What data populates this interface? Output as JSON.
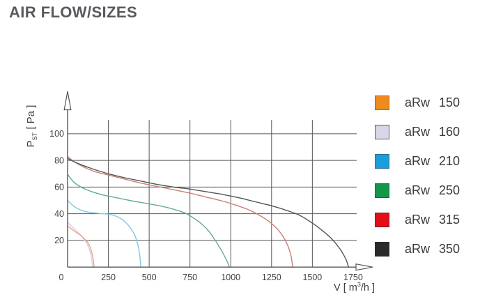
{
  "page": {
    "title": "AIR FLOW/SIZES"
  },
  "colors": {
    "title": "#585A5F",
    "axis": "#55565A",
    "grid": "#55565A",
    "tick_text": "#3E3F41",
    "legend_text": "#3B3C3E",
    "background": "#FFFFFF"
  },
  "chart_data": {
    "type": "line",
    "title": "AIR FLOW/SIZES",
    "xlabel": "V [ m³/h ]",
    "xlabel_parts": {
      "prefix": "V [ m",
      "sup": "3",
      "suffix": "/h ]"
    },
    "ylabel": "Pst [ Pa ]",
    "ylabel_parts": {
      "symbol": "P",
      "sub": "ST",
      "unit": " [ Pa ]"
    },
    "x_ticks": [
      0,
      250,
      500,
      750,
      1000,
      1250,
      1500,
      1750
    ],
    "y_ticks": [
      20,
      40,
      60,
      80,
      100
    ],
    "xlim": [
      0,
      1800
    ],
    "ylim": [
      0,
      110
    ],
    "grid": true,
    "legend_position": "right",
    "series": [
      {
        "name": "aRw 150",
        "swatch_color": "#EF8A1D",
        "swatch_border": "#8C6D40",
        "curve_color": "#E9A186",
        "points": [
          [
            0,
            31
          ],
          [
            30,
            28
          ],
          [
            60,
            25.5
          ],
          [
            88,
            23
          ],
          [
            105,
            21
          ],
          [
            120,
            19
          ],
          [
            135,
            16
          ],
          [
            148,
            11
          ],
          [
            158,
            5
          ],
          [
            163,
            0
          ]
        ]
      },
      {
        "name": "aRw 160",
        "swatch_color": "#D9D6E8",
        "swatch_border": "#58595B",
        "curve_color": "#D4CFDF",
        "points": [
          [
            0,
            33.5
          ],
          [
            30,
            30
          ],
          [
            60,
            26.5
          ],
          [
            85,
            23.5
          ],
          [
            100,
            21
          ],
          [
            112,
            19
          ],
          [
            125,
            16
          ],
          [
            138,
            11.5
          ],
          [
            148,
            6
          ],
          [
            153,
            0
          ]
        ]
      },
      {
        "name": "aRw 210",
        "swatch_color": "#1B9DD9",
        "swatch_border": "#2A6E96",
        "curve_color": "#7EC9E4",
        "points": [
          [
            0,
            50
          ],
          [
            30,
            46.5
          ],
          [
            60,
            44
          ],
          [
            100,
            42
          ],
          [
            150,
            40.8
          ],
          [
            200,
            40.2
          ],
          [
            250,
            39.7
          ],
          [
            290,
            38.5
          ],
          [
            325,
            36.5
          ],
          [
            360,
            33
          ],
          [
            390,
            28.5
          ],
          [
            415,
            23
          ],
          [
            432,
            16
          ],
          [
            443,
            8
          ],
          [
            449,
            0
          ]
        ]
      },
      {
        "name": "aRw 250",
        "swatch_color": "#13954A",
        "swatch_border": "#2A5F3E",
        "curve_color": "#63AB95",
        "points": [
          [
            0,
            69.5
          ],
          [
            40,
            63.5
          ],
          [
            90,
            59.5
          ],
          [
            150,
            56.5
          ],
          [
            220,
            54
          ],
          [
            300,
            52
          ],
          [
            380,
            50
          ],
          [
            450,
            48.5
          ],
          [
            520,
            47
          ],
          [
            600,
            45
          ],
          [
            660,
            43
          ],
          [
            720,
            40.5
          ],
          [
            770,
            37
          ],
          [
            820,
            32.5
          ],
          [
            865,
            27
          ],
          [
            905,
            20
          ],
          [
            945,
            12
          ],
          [
            975,
            5
          ],
          [
            992,
            0
          ]
        ]
      },
      {
        "name": "aRw 315",
        "swatch_color": "#E30E18",
        "swatch_border": "#7A2020",
        "curve_color": "#CB7E74",
        "points": [
          [
            0,
            83
          ],
          [
            40,
            79
          ],
          [
            100,
            75
          ],
          [
            170,
            71.5
          ],
          [
            250,
            69
          ],
          [
            350,
            66
          ],
          [
            450,
            63
          ],
          [
            550,
            60.5
          ],
          [
            650,
            58
          ],
          [
            750,
            55.5
          ],
          [
            850,
            52.5
          ],
          [
            950,
            49.5
          ],
          [
            1030,
            46.5
          ],
          [
            1100,
            43.5
          ],
          [
            1160,
            40
          ],
          [
            1220,
            35.5
          ],
          [
            1270,
            30.5
          ],
          [
            1315,
            24
          ],
          [
            1350,
            16
          ],
          [
            1370,
            8
          ],
          [
            1379,
            0
          ]
        ]
      },
      {
        "name": "aRw 350",
        "swatch_color": "#2B2A29",
        "swatch_border": "#2B2A29",
        "curve_color": "#535456",
        "points": [
          [
            0,
            81.5
          ],
          [
            40,
            79
          ],
          [
            100,
            76
          ],
          [
            170,
            73
          ],
          [
            250,
            70
          ],
          [
            350,
            67
          ],
          [
            450,
            64.5
          ],
          [
            550,
            62
          ],
          [
            650,
            60
          ],
          [
            750,
            58.5
          ],
          [
            850,
            56.5
          ],
          [
            950,
            54.5
          ],
          [
            1050,
            52
          ],
          [
            1150,
            49
          ],
          [
            1250,
            46
          ],
          [
            1330,
            43
          ],
          [
            1420,
            39
          ],
          [
            1500,
            33
          ],
          [
            1560,
            27.5
          ],
          [
            1620,
            21
          ],
          [
            1670,
            13.5
          ],
          [
            1705,
            6
          ],
          [
            1722,
            0
          ]
        ]
      }
    ]
  }
}
